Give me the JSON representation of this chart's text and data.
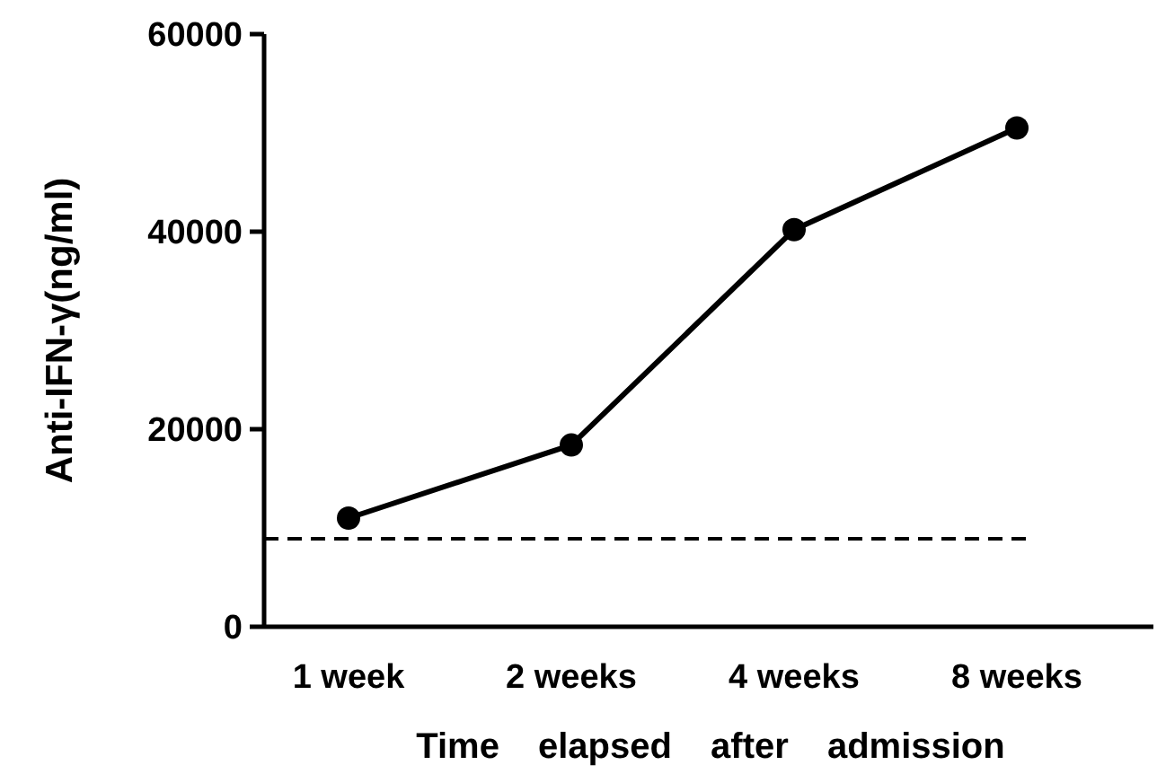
{
  "chart_data": {
    "type": "line",
    "xlabel": "Time elapsed after admission",
    "ylabel": "Anti-IFN-γ(ng/ml)",
    "categories": [
      "1 week",
      "2 weeks",
      "4 weeks",
      "8 weeks"
    ],
    "series": [
      {
        "color": "#000000",
        "values": [
          11000,
          18400,
          40200,
          50500
        ]
      }
    ],
    "ylim": [
      0,
      60000
    ],
    "yticks": [
      0,
      20000,
      40000,
      60000
    ],
    "marker": "circle",
    "line_style": "solid",
    "grid": false,
    "ref_lines": [
      {
        "axis": "y",
        "value": 8900,
        "color": "#000000",
        "line_style": "dashed"
      }
    ]
  }
}
